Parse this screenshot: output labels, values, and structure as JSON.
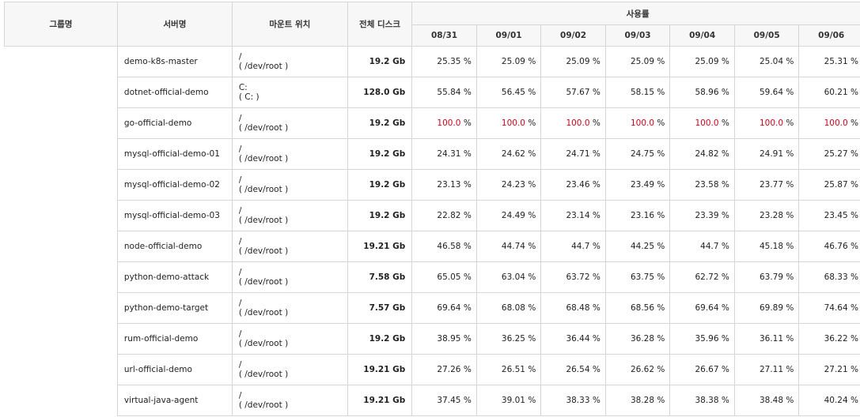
{
  "headers": {
    "group": "그룹명",
    "server": "서버명",
    "mount": "마운트 위치",
    "disk": "전체 디스크",
    "usage": "사용률",
    "dates": [
      "08/31",
      "09/01",
      "09/02",
      "09/03",
      "09/04",
      "09/05",
      "09/06"
    ]
  },
  "unit": "%",
  "alert_color": "#d0021b",
  "rows": [
    {
      "server": "demo-k8s-master",
      "mount_path": "/",
      "mount_device": "( /dev/root )",
      "disk": "19.2 Gb",
      "usage": [
        "25.35",
        "25.09",
        "25.09",
        "25.09",
        "25.09",
        "25.04",
        "25.31"
      ],
      "alert": false
    },
    {
      "server": "dotnet-official-demo",
      "mount_path": "C:",
      "mount_device": "( C: )",
      "disk": "128.0 Gb",
      "usage": [
        "55.84",
        "56.45",
        "57.67",
        "58.15",
        "58.96",
        "59.64",
        "60.21"
      ],
      "alert": false
    },
    {
      "server": "go-official-demo",
      "mount_path": "/",
      "mount_device": "( /dev/root )",
      "disk": "19.2 Gb",
      "usage": [
        "100.0",
        "100.0",
        "100.0",
        "100.0",
        "100.0",
        "100.0",
        "100.0"
      ],
      "alert": true
    },
    {
      "server": "mysql-official-demo-01",
      "mount_path": "/",
      "mount_device": "( /dev/root )",
      "disk": "19.2 Gb",
      "usage": [
        "24.31",
        "24.62",
        "24.71",
        "24.75",
        "24.82",
        "24.91",
        "25.27"
      ],
      "alert": false
    },
    {
      "server": "mysql-official-demo-02",
      "mount_path": "/",
      "mount_device": "( /dev/root )",
      "disk": "19.2 Gb",
      "usage": [
        "23.13",
        "24.23",
        "23.46",
        "23.49",
        "23.58",
        "23.77",
        "25.87"
      ],
      "alert": false
    },
    {
      "server": "mysql-official-demo-03",
      "mount_path": "/",
      "mount_device": "( /dev/root )",
      "disk": "19.2 Gb",
      "usage": [
        "22.82",
        "24.49",
        "23.14",
        "23.16",
        "23.39",
        "23.28",
        "23.45"
      ],
      "alert": false
    },
    {
      "server": "node-official-demo",
      "mount_path": "/",
      "mount_device": "( /dev/root )",
      "disk": "19.21 Gb",
      "usage": [
        "46.58",
        "44.74",
        "44.7",
        "44.25",
        "44.7",
        "45.18",
        "46.76"
      ],
      "alert": false
    },
    {
      "server": "python-demo-attack",
      "mount_path": "/",
      "mount_device": "( /dev/root )",
      "disk": "7.58 Gb",
      "usage": [
        "65.05",
        "63.04",
        "63.72",
        "63.75",
        "62.72",
        "63.79",
        "68.33"
      ],
      "alert": false
    },
    {
      "server": "python-demo-target",
      "mount_path": "/",
      "mount_device": "( /dev/root )",
      "disk": "7.57 Gb",
      "usage": [
        "69.64",
        "68.08",
        "68.48",
        "68.56",
        "69.64",
        "69.89",
        "74.64"
      ],
      "alert": false
    },
    {
      "server": "rum-official-demo",
      "mount_path": "/",
      "mount_device": "( /dev/root )",
      "disk": "19.2 Gb",
      "usage": [
        "38.95",
        "36.25",
        "36.44",
        "36.28",
        "35.96",
        "36.11",
        "36.22"
      ],
      "alert": false
    },
    {
      "server": "url-official-demo",
      "mount_path": "/",
      "mount_device": "( /dev/root )",
      "disk": "19.21 Gb",
      "usage": [
        "27.26",
        "26.51",
        "26.54",
        "26.62",
        "26.67",
        "27.11",
        "27.21"
      ],
      "alert": false
    },
    {
      "server": "virtual-java-agent",
      "mount_path": "/",
      "mount_device": "( /dev/root )",
      "disk": "19.21 Gb",
      "usage": [
        "37.45",
        "39.01",
        "38.33",
        "38.28",
        "38.38",
        "38.48",
        "40.24"
      ],
      "alert": false
    }
  ]
}
